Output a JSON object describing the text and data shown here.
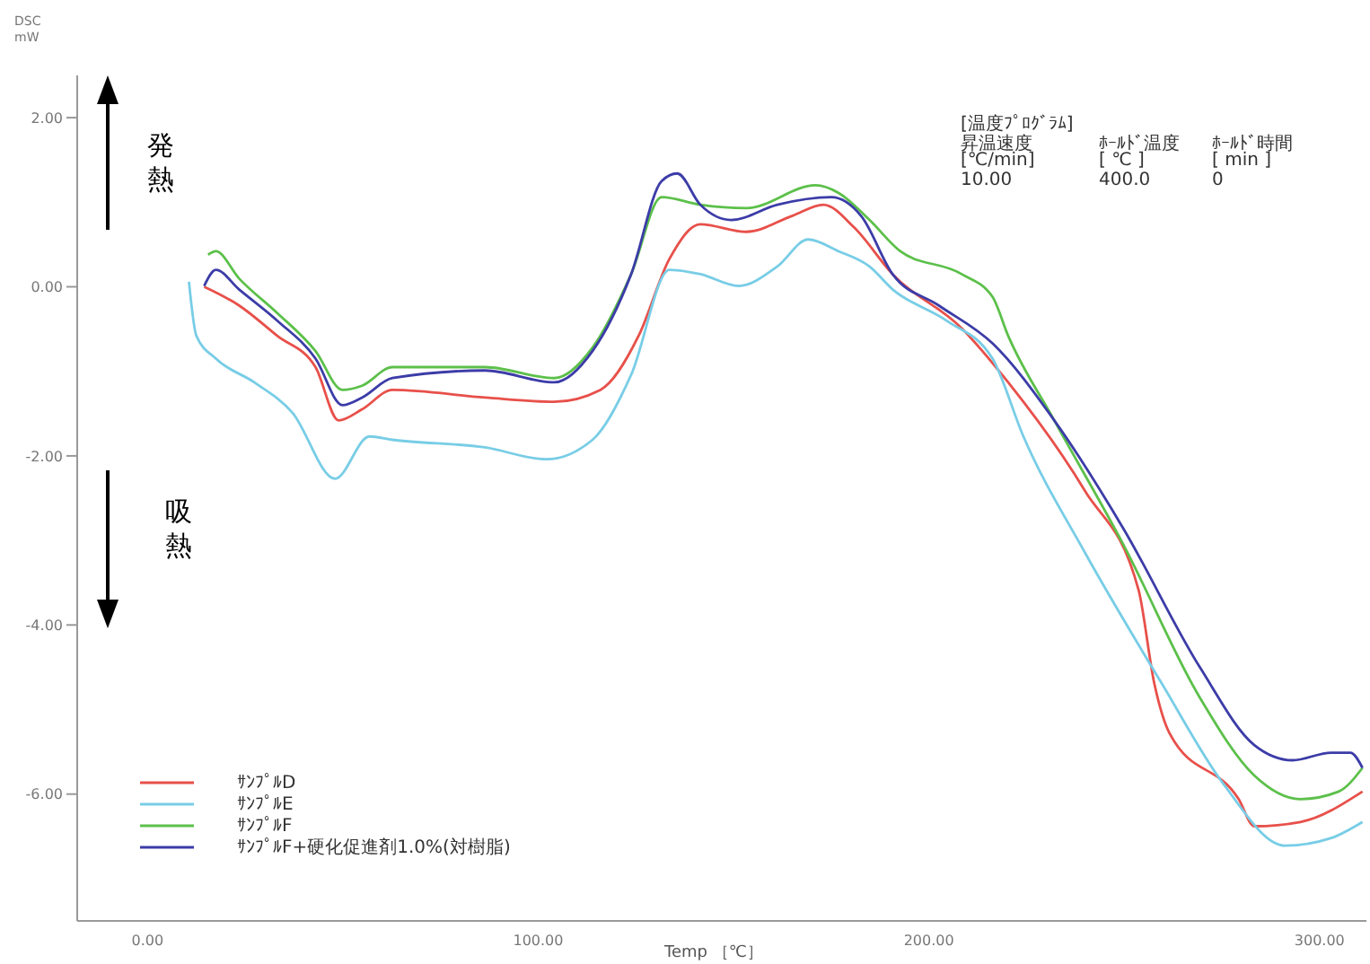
{
  "chart_data": {
    "type": "line",
    "xlabel": "Temp ［℃］",
    "ylabel": "DSC mW",
    "xlim": [
      -18,
      312
    ],
    "ylim": [
      -7.5,
      2.5
    ],
    "xticks": [
      {
        "value": 0,
        "label": "0.00"
      },
      {
        "value": 100,
        "label": "100.00"
      },
      {
        "value": 200,
        "label": "200.00"
      },
      {
        "value": 300,
        "label": "300.00"
      }
    ],
    "yticks": [
      {
        "value": 2,
        "label": "2.00"
      },
      {
        "value": 0,
        "label": "0.00"
      },
      {
        "value": -2,
        "label": "-2.00"
      },
      {
        "value": -4,
        "label": "-4.00"
      },
      {
        "value": -6,
        "label": "-6.00"
      }
    ],
    "grid": false,
    "legend": "bottom left",
    "annotations": [
      "発熱",
      "吸熱",
      "[温度ﾌﾟﾛｸﾞﾗﾑ]",
      "昇温速度",
      "ﾎｰﾙﾄﾞ温度",
      "ﾎｰﾙﾄﾞ時間",
      "[℃/min]",
      "[ ℃ ]",
      "[ min ]",
      "10.00",
      "400.0",
      "0"
    ],
    "series": [
      {
        "name": "ｻﾝﾌﾟﾙD",
        "color": "#e8504a",
        "x": [
          14.5,
          23.4,
          33.2,
          43.0,
          48.9,
          54.9,
          62.7,
          86.4,
          104.1,
          115.9,
          125.7,
          133.6,
          141.5,
          153.3,
          165.1,
          173.0,
          180.9,
          190.7,
          208.4,
          220.3,
          239.9,
          253.7,
          257.7,
          261.6,
          279.3,
          283.3,
          295.1,
          311
        ],
        "values": [
          0.0,
          -0.22,
          -0.58,
          -0.95,
          -1.58,
          -1.45,
          -1.22,
          -1.31,
          -1.36,
          -1.22,
          -0.58,
          0.33,
          0.74,
          0.65,
          0.84,
          0.97,
          0.7,
          0.15,
          -0.49,
          -1.13,
          -2.41,
          -3.59,
          -4.69,
          -5.28,
          -6.06,
          -6.38,
          -6.33,
          -5.97
        ]
      },
      {
        "name": "ｻﾝﾌﾟﾙE",
        "color": "#78cde6",
        "x": [
          10.6,
          12.5,
          17.5,
          27.3,
          37.1,
          48.0,
          56.8,
          62.7,
          86.4,
          102.1,
          113.9,
          123.8,
          133.6,
          141.5,
          151.3,
          161.2,
          169.1,
          176.9,
          184.8,
          190.7,
          204.5,
          216.3,
          224.2,
          239.9,
          259.6,
          275.4,
          291.2,
          303.0,
          311
        ],
        "values": [
          0.06,
          -0.58,
          -0.85,
          -1.13,
          -1.49,
          -2.27,
          -1.77,
          -1.81,
          -1.9,
          -2.04,
          -1.81,
          -1.04,
          0.2,
          0.15,
          0.01,
          0.24,
          0.56,
          0.42,
          0.24,
          -0.03,
          -0.4,
          -0.85,
          -1.77,
          -3.14,
          -4.69,
          -5.88,
          -6.61,
          -6.52,
          -6.33
        ]
      },
      {
        "name": "ｻﾝﾌﾟﾙF",
        "color": "#5cc04a",
        "x": [
          15.5,
          17.5,
          23.4,
          33.2,
          43.0,
          49.9,
          54.9,
          62.7,
          86.4,
          104.1,
          113.9,
          123.8,
          131.6,
          141.5,
          153.3,
          171.0,
          176.9,
          184.8,
          192.7,
          208.4,
          216.3,
          220.3,
          232.1,
          249.8,
          269.5,
          283.3,
          295.1,
          304.9,
          311
        ],
        "values": [
          0.38,
          0.42,
          0.1,
          -0.31,
          -0.76,
          -1.22,
          -1.17,
          -0.95,
          -0.95,
          -1.08,
          -0.72,
          0.15,
          1.06,
          0.97,
          0.93,
          1.2,
          1.11,
          0.79,
          0.42,
          0.15,
          -0.12,
          -0.58,
          -1.58,
          -3.05,
          -4.87,
          -5.78,
          -6.06,
          -5.97,
          -5.69
        ]
      },
      {
        "name": "ｻﾝﾌﾟﾙF+硬化促進剤1.0%(対樹脂)",
        "color": "#3c3ca8",
        "x": [
          14.5,
          17.5,
          23.4,
          33.2,
          43.0,
          49.9,
          54.9,
          62.7,
          86.4,
          104.1,
          113.9,
          123.8,
          131.6,
          135.6,
          141.5,
          149.4,
          161.2,
          175.0,
          182.8,
          190.7,
          202.5,
          216.3,
          232.1,
          249.8,
          269.5,
          283.3,
          293.1,
          303.0,
          307.9,
          311
        ],
        "values": [
          0.01,
          0.2,
          -0.03,
          -0.4,
          -0.85,
          -1.4,
          -1.31,
          -1.08,
          -0.99,
          -1.13,
          -0.76,
          0.15,
          1.25,
          1.34,
          0.97,
          0.79,
          0.97,
          1.06,
          0.83,
          0.15,
          -0.22,
          -0.67,
          -1.58,
          -2.86,
          -4.51,
          -5.42,
          -5.6,
          -5.51,
          -5.51,
          -5.69
        ]
      }
    ]
  }
}
